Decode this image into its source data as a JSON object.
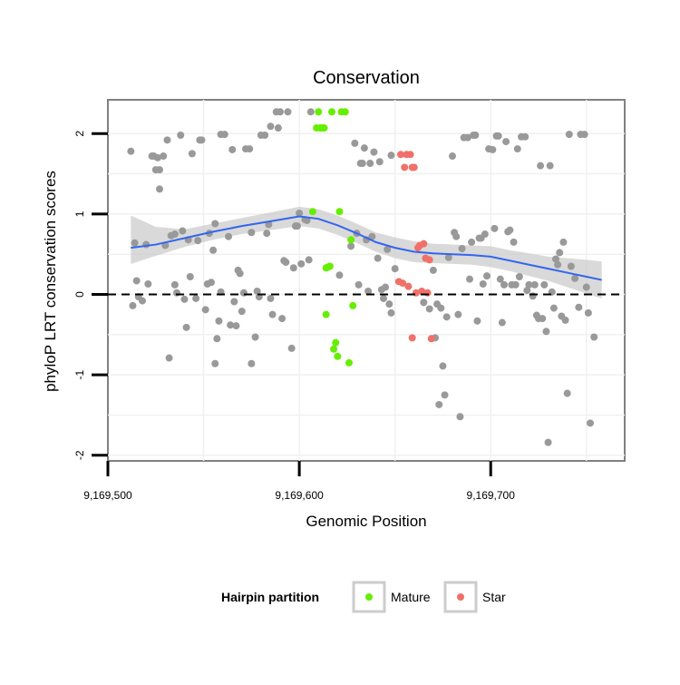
{
  "chart_data": {
    "type": "scatter",
    "title": "Conservation",
    "xlabel": "Genomic Position",
    "ylabel": "phyloP LRT conservation scores",
    "xlim": [
      9169500,
      9169770
    ],
    "ylim": [
      -2.07,
      2.42
    ],
    "x_ticks": [
      {
        "value": 9169500,
        "label": "9,169,500"
      },
      {
        "value": 9169600,
        "label": "9,169,600"
      },
      {
        "value": 9169700,
        "label": "9,169,700"
      }
    ],
    "y_ticks": [
      {
        "value": 2,
        "label": "2"
      },
      {
        "value": 1,
        "label": "1"
      },
      {
        "value": 0,
        "label": "0"
      },
      {
        "value": -1,
        "label": "-1"
      },
      {
        "value": -2,
        "label": "-2"
      }
    ],
    "reference_line": {
      "y": 0,
      "style": "dashed"
    },
    "grid": true,
    "legend": {
      "title": "Hairpin partition",
      "placement": "bottom",
      "entries": [
        {
          "name": "Mature",
          "color": "#66ee00"
        },
        {
          "name": "Star",
          "color": "#f0706a"
        }
      ]
    },
    "colors": {
      "other": "#999999",
      "mature": "#66ee00",
      "star": "#f0706a",
      "smooth": "#3366ee",
      "band": "#cccccc"
    },
    "series": [
      {
        "name": "",
        "group": "other",
        "points": [
          [
            9169512,
            1.78
          ],
          [
            9169514,
            0.64
          ],
          [
            9169513,
            -0.14
          ],
          [
            9169515,
            0.17
          ],
          [
            9169516,
            -0.03
          ],
          [
            9169518,
            -0.08
          ],
          [
            9169520,
            0.62
          ],
          [
            9169521,
            0.13
          ],
          [
            9169523,
            1.72
          ],
          [
            9169524,
            1.72
          ],
          [
            9169525,
            1.55
          ],
          [
            9169526,
            1.7
          ],
          [
            9169527,
            1.55
          ],
          [
            9169527,
            1.31
          ],
          [
            9169529,
            1.72
          ],
          [
            9169530,
            0.61
          ],
          [
            9169531,
            1.92
          ],
          [
            9169532,
            -0.79
          ],
          [
            9169533,
            0.73
          ],
          [
            9169535,
            0.75
          ],
          [
            9169535,
            0.12
          ],
          [
            9169536,
            0.02
          ],
          [
            9169538,
            1.98
          ],
          [
            9169539,
            0.79
          ],
          [
            9169540,
            -0.06
          ],
          [
            9169541,
            -0.41
          ],
          [
            9169542,
            0.68
          ],
          [
            9169543,
            0.22
          ],
          [
            9169544,
            1.75
          ],
          [
            9169546,
            -0.05
          ],
          [
            9169547,
            0.67
          ],
          [
            9169548,
            1.92
          ],
          [
            9169549,
            1.92
          ],
          [
            9169551,
            -0.19
          ],
          [
            9169552,
            0.13
          ],
          [
            9169553,
            0.76
          ],
          [
            9169554,
            0.15
          ],
          [
            9169555,
            0.55
          ],
          [
            9169556,
            0.88
          ],
          [
            9169557,
            -0.55
          ],
          [
            9169556,
            -0.86
          ],
          [
            9169558,
            -0.33
          ],
          [
            9169559,
            0.03
          ],
          [
            9169559,
            1.99
          ],
          [
            9169561,
            1.99
          ],
          [
            9169563,
            0.72
          ],
          [
            9169564,
            -0.38
          ],
          [
            9169565,
            1.8
          ],
          [
            9169566,
            -0.09
          ],
          [
            9169567,
            -0.39
          ],
          [
            9169568,
            0.3
          ],
          [
            9169569,
            0.26
          ],
          [
            9169570,
            -0.21
          ],
          [
            9169571,
            0.02
          ],
          [
            9169572,
            1.81
          ],
          [
            9169574,
            1.81
          ],
          [
            9169575,
            0.77
          ],
          [
            9169575,
            -0.86
          ],
          [
            9169577,
            -0.53
          ],
          [
            9169578,
            0.04
          ],
          [
            9169579,
            -0.03
          ],
          [
            9169580,
            1.98
          ],
          [
            9169582,
            1.98
          ],
          [
            9169583,
            0.76
          ],
          [
            9169584,
            0.87
          ],
          [
            9169585,
            2.09
          ],
          [
            9169585,
            -0.05
          ],
          [
            9169586,
            -0.25
          ],
          [
            9169588,
            2.27
          ],
          [
            9169590,
            2.27
          ],
          [
            9169589,
            2.07
          ],
          [
            9169591,
            -0.3
          ],
          [
            9169592,
            0.42
          ],
          [
            9169593,
            0.4
          ],
          [
            9169594,
            2.27
          ],
          [
            9169596,
            -0.67
          ],
          [
            9169597,
            0.33
          ],
          [
            9169598,
            0.85
          ],
          [
            9169599,
            0.85
          ],
          [
            9169600,
            1.01
          ],
          [
            9169601,
            0.38
          ],
          [
            9169603,
            0.93
          ],
          [
            9169604,
            0.92
          ],
          [
            9169605,
            0.43
          ],
          [
            9169606,
            2.27
          ],
          [
            9169621,
            0.24
          ],
          [
            9169627,
            0.6
          ],
          [
            9169629,
            1.88
          ],
          [
            9169630,
            0.76
          ],
          [
            9169631,
            0.12
          ],
          [
            9169632,
            1.63
          ],
          [
            9169633,
            1.63
          ],
          [
            9169634,
            1.82
          ],
          [
            9169635,
            0.68
          ],
          [
            9169636,
            0.04
          ],
          [
            9169637,
            1.63
          ],
          [
            9169638,
            0.72
          ],
          [
            9169639,
            1.77
          ],
          [
            9169641,
            0.45
          ],
          [
            9169642,
            1.65
          ],
          [
            9169643,
            0.06
          ],
          [
            9169644,
            -0.05
          ],
          [
            9169645,
            0.09
          ],
          [
            9169646,
            0.56
          ],
          [
            9169647,
            -0.12
          ],
          [
            9169648,
            -0.23
          ],
          [
            9169648,
            1.73
          ],
          [
            9169650,
            0.32
          ],
          [
            9169665,
            -0.1
          ],
          [
            9169668,
            -0.18
          ],
          [
            9169670,
            0.3
          ],
          [
            9169671,
            -0.54
          ],
          [
            9169672,
            -0.12
          ],
          [
            9169673,
            -1.37
          ],
          [
            9169674,
            -0.17
          ],
          [
            9169675,
            -0.89
          ],
          [
            9169676,
            -1.25
          ],
          [
            9169677,
            -0.28
          ],
          [
            9169678,
            0.46
          ],
          [
            9169680,
            1.72
          ],
          [
            9169681,
            0.77
          ],
          [
            9169682,
            0.72
          ],
          [
            9169683,
            -0.25
          ],
          [
            9169684,
            -1.52
          ],
          [
            9169685,
            0.57
          ],
          [
            9169686,
            1.95
          ],
          [
            9169688,
            1.95
          ],
          [
            9169689,
            0.19
          ],
          [
            9169690,
            0.65
          ],
          [
            9169691,
            1.98
          ],
          [
            9169692,
            1.98
          ],
          [
            9169693,
            -0.33
          ],
          [
            9169694,
            0.7
          ],
          [
            9169695,
            0.7
          ],
          [
            9169696,
            0.13
          ],
          [
            9169697,
            0.75
          ],
          [
            9169698,
            0.23
          ],
          [
            9169699,
            1.81
          ],
          [
            9169701,
            1.8
          ],
          [
            9169702,
            0.82
          ],
          [
            9169703,
            1.97
          ],
          [
            9169704,
            1.97
          ],
          [
            9169705,
            0.19
          ],
          [
            9169706,
            -0.35
          ],
          [
            9169707,
            0.12
          ],
          [
            9169708,
            1.9
          ],
          [
            9169709,
            0.78
          ],
          [
            9169710,
            0.8
          ],
          [
            9169711,
            0.12
          ],
          [
            9169712,
            0.65
          ],
          [
            9169713,
            0.12
          ],
          [
            9169714,
            1.81
          ],
          [
            9169715,
            0.22
          ],
          [
            9169716,
            1.96
          ],
          [
            9169718,
            1.96
          ],
          [
            9169719,
            0.05
          ],
          [
            9169720,
            0.12
          ],
          [
            9169722,
            -0.02
          ],
          [
            9169723,
            0.12
          ],
          [
            9169724,
            -0.26
          ],
          [
            9169725,
            -0.3
          ],
          [
            9169726,
            1.6
          ],
          [
            9169727,
            -0.3
          ],
          [
            9169728,
            0.12
          ],
          [
            9169729,
            -0.46
          ],
          [
            9169730,
            -1.84
          ],
          [
            9169731,
            1.6
          ],
          [
            9169732,
            0.03
          ],
          [
            9169733,
            -0.17
          ],
          [
            9169734,
            0.44
          ],
          [
            9169735,
            0.37
          ],
          [
            9169736,
            0.52
          ],
          [
            9169737,
            -0.27
          ],
          [
            9169738,
            0.65
          ],
          [
            9169739,
            -0.32
          ],
          [
            9169740,
            -1.23
          ],
          [
            9169741,
            1.99
          ],
          [
            9169742,
            0.35
          ],
          [
            9169744,
            0.2
          ],
          [
            9169746,
            -0.16
          ],
          [
            9169747,
            1.99
          ],
          [
            9169749,
            1.99
          ],
          [
            9169750,
            0.09
          ],
          [
            9169751,
            -0.23
          ],
          [
            9169752,
            -1.6
          ],
          [
            9169754,
            -0.53
          ]
        ]
      },
      {
        "name": "Mature",
        "group": "mature",
        "points": [
          [
            9169607,
            1.03
          ],
          [
            9169609,
            2.07
          ],
          [
            9169610,
            2.27
          ],
          [
            9169611,
            2.07
          ],
          [
            9169612,
            2.07
          ],
          [
            9169613,
            2.07
          ],
          [
            9169614,
            0.33
          ],
          [
            9169615,
            0.34
          ],
          [
            9169616,
            0.35
          ],
          [
            9169614,
            -0.25
          ],
          [
            9169617,
            2.27
          ],
          [
            9169618,
            -0.68
          ],
          [
            9169619,
            -0.6
          ],
          [
            9169620,
            -0.77
          ],
          [
            9169621,
            1.03
          ],
          [
            9169622,
            2.27
          ],
          [
            9169624,
            2.27
          ],
          [
            9169626,
            -0.85
          ],
          [
            9169627,
            0.68
          ],
          [
            9169628,
            -0.14
          ]
        ]
      },
      {
        "name": "Star",
        "group": "star",
        "points": [
          [
            9169652,
            0.16
          ],
          [
            9169653,
            1.74
          ],
          [
            9169654,
            0.14
          ],
          [
            9169655,
            1.58
          ],
          [
            9169656,
            1.74
          ],
          [
            9169657,
            0.1
          ],
          [
            9169658,
            1.74
          ],
          [
            9169659,
            1.58
          ],
          [
            9169659,
            -0.54
          ],
          [
            9169660,
            1.58
          ],
          [
            9169661,
            0.02
          ],
          [
            9169662,
            0.58
          ],
          [
            9169663,
            0.61
          ],
          [
            9169664,
            0.04
          ],
          [
            9169665,
            0.63
          ],
          [
            9169666,
            0.45
          ],
          [
            9169667,
            0.02
          ],
          [
            9169668,
            0.43
          ],
          [
            9169669,
            -0.55
          ]
        ]
      }
    ],
    "smooth": {
      "x": [
        9169512,
        9169525,
        9169540,
        9169555,
        9169570,
        9169585,
        9169600,
        9169610,
        9169620,
        9169630,
        9169640,
        9169650,
        9169660,
        9169670,
        9169680,
        9169690,
        9169700,
        9169710,
        9169720,
        9169730,
        9169740,
        9169750,
        9169758
      ],
      "y": [
        0.58,
        0.62,
        0.7,
        0.78,
        0.85,
        0.91,
        0.97,
        0.94,
        0.86,
        0.76,
        0.65,
        0.58,
        0.53,
        0.51,
        0.5,
        0.49,
        0.47,
        0.42,
        0.37,
        0.32,
        0.27,
        0.22,
        0.18
      ],
      "lower": [
        0.38,
        0.48,
        0.59,
        0.68,
        0.75,
        0.8,
        0.85,
        0.82,
        0.74,
        0.64,
        0.53,
        0.45,
        0.4,
        0.39,
        0.38,
        0.37,
        0.34,
        0.29,
        0.23,
        0.17,
        0.09,
        0.01,
        -0.05
      ],
      "upper": [
        0.98,
        0.84,
        0.81,
        0.88,
        0.95,
        1.02,
        1.09,
        1.06,
        0.98,
        0.88,
        0.77,
        0.71,
        0.66,
        0.63,
        0.62,
        0.61,
        0.6,
        0.55,
        0.51,
        0.47,
        0.45,
        0.43,
        0.41
      ]
    }
  }
}
